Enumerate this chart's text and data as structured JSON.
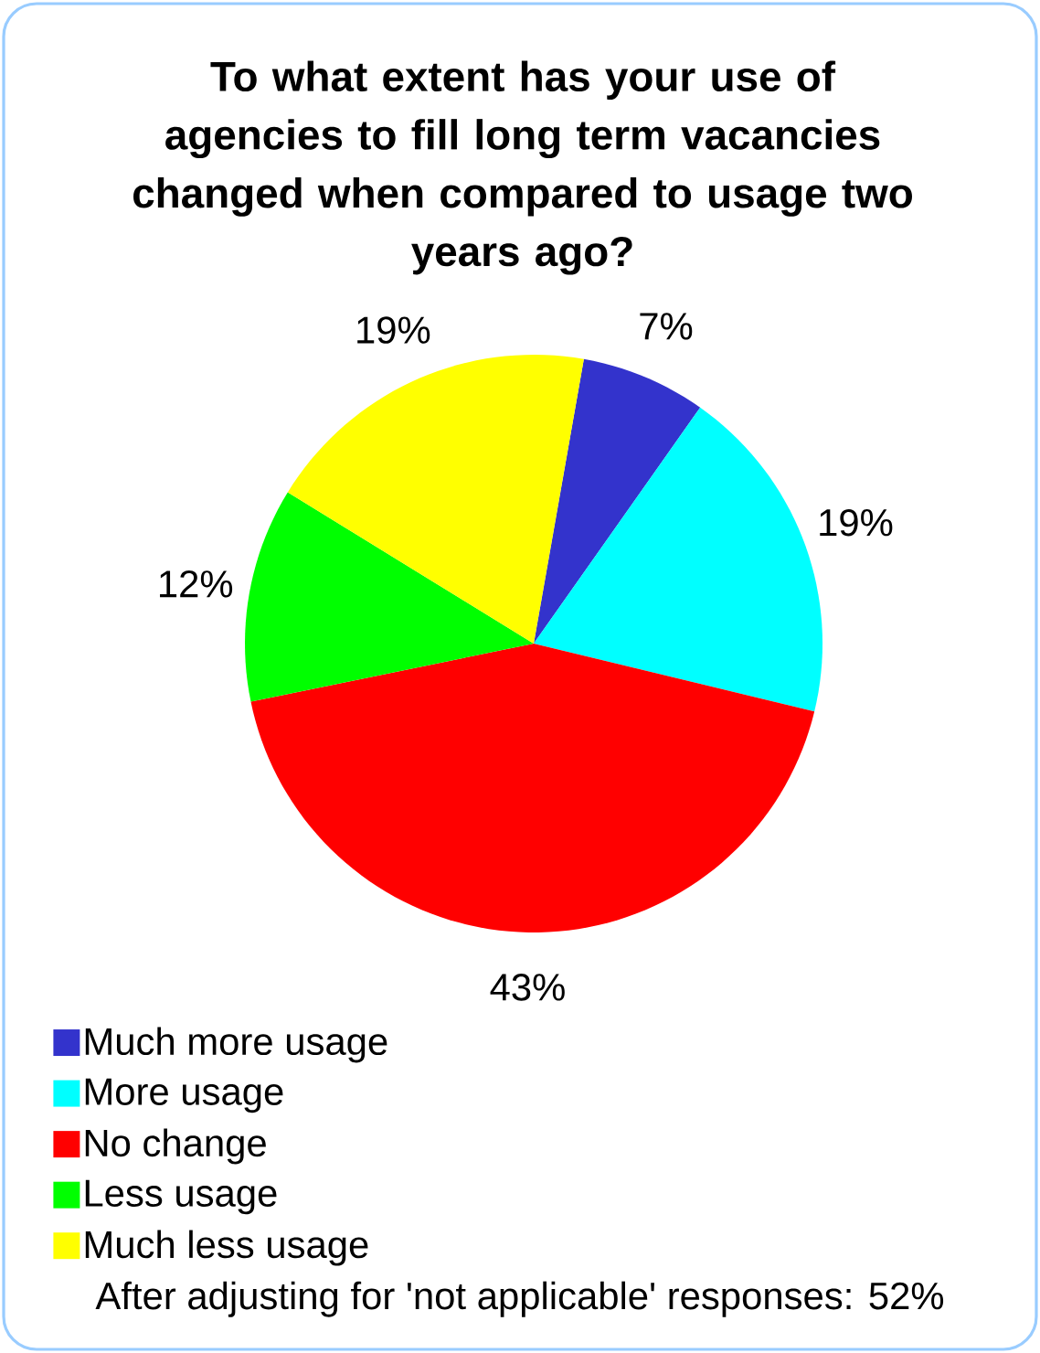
{
  "chart_data": {
    "type": "pie",
    "title": "To what extent has your use of agencies to fill long term vacancies changed when compared to usage two years ago?",
    "categories": [
      "Much more usage",
      "More usage",
      "No change",
      "Less usage",
      "Much less usage"
    ],
    "values": [
      7,
      19,
      43,
      12,
      19
    ],
    "colors": [
      "#3333cc",
      "#00ffff",
      "#ff0000",
      "#00ff00",
      "#ffff00"
    ],
    "value_labels": [
      "7%",
      "19%",
      "43%",
      "12%",
      "19%"
    ],
    "legend": "bottom",
    "annotations": [
      "After adjusting for 'not applicable' responses: 52%"
    ]
  }
}
